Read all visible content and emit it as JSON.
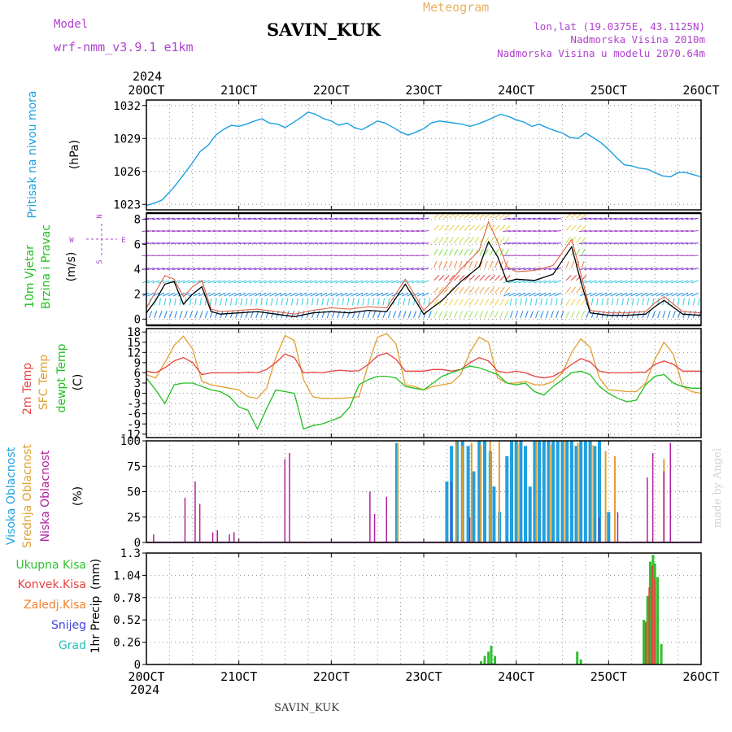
{
  "header": {
    "model_label": "Model",
    "model_name": "wrf-nmm_v3.9.1 e1km",
    "station": "SAVIN_KUK",
    "product": "Meteogram",
    "coords": "lon,lat (19.0375E, 43.1125N)",
    "altitude": "Nadmorska Visina 2010m",
    "model_altitude": "Nadmorska Visina u modelu 2070.64m",
    "footer_station": "SAVIN_KUK",
    "credit": "made by Angel",
    "year": "2024"
  },
  "x_axis": {
    "ticks": [
      "20OCT",
      "21OCT",
      "22OCT",
      "23OCT",
      "24OCT",
      "25OCT",
      "26OCT"
    ]
  },
  "colors": {
    "pressure": "#1aa0e0",
    "temp_2m": "#e84040",
    "temp_sfc": "#e0a030",
    "dewpoint": "#20c020",
    "cloud_high": "#20a0e0",
    "cloud_mid": "#e0a030",
    "cloud_low": "#b020a0",
    "precip_total": "#30c030",
    "precip_conv": "#e84040",
    "precip_frz": "#f08030",
    "snow": "#4040e0",
    "hail": "#20c0c0",
    "label_purple": "#b040d0",
    "title_orange": "#e8b060"
  },
  "chart_data": [
    {
      "type": "line",
      "id": "pressure",
      "ylabel_main": "Pritisak na nivou mora",
      "ylabel_unit": "(hPa)",
      "ylim": [
        1022.5,
        1032.5
      ],
      "yticks": [
        1023,
        1026,
        1029,
        1032
      ],
      "x": [
        20.0,
        20.08,
        20.17,
        20.25,
        20.33,
        20.42,
        20.5,
        20.58,
        20.67,
        20.75,
        20.83,
        20.92,
        21.0,
        21.08,
        21.17,
        21.25,
        21.33,
        21.42,
        21.5,
        21.58,
        21.67,
        21.75,
        21.83,
        21.92,
        22.0,
        22.08,
        22.17,
        22.25,
        22.33,
        22.42,
        22.5,
        22.58,
        22.67,
        22.75,
        22.83,
        22.92,
        23.0,
        23.08,
        23.17,
        23.25,
        23.33,
        23.42,
        23.5,
        23.58,
        23.67,
        23.75,
        23.83,
        23.92,
        24.0,
        24.08,
        24.17,
        24.25,
        24.33,
        24.42,
        24.5,
        24.58,
        24.67,
        24.75,
        24.83,
        24.92,
        25.0,
        25.08,
        25.17,
        25.25,
        25.33,
        25.42,
        25.5,
        25.58,
        25.67,
        25.75,
        25.83,
        25.92,
        26.0
      ],
      "series": [
        {
          "values": [
            1022.9,
            1023.1,
            1023.4,
            1024.1,
            1024.9,
            1025.9,
            1026.8,
            1027.8,
            1028.4,
            1029.3,
            1029.8,
            1030.2,
            1030.1,
            1030.3,
            1030.6,
            1030.8,
            1030.4,
            1030.3,
            1030.0,
            1030.4,
            1030.9,
            1031.4,
            1031.2,
            1030.8,
            1030.6,
            1030.2,
            1030.4,
            1030.0,
            1029.8,
            1030.2,
            1030.6,
            1030.4,
            1030.0,
            1029.6,
            1029.3,
            1029.6,
            1029.9,
            1030.4,
            1030.6,
            1030.5,
            1030.4,
            1030.3,
            1030.1,
            1030.3,
            1030.6,
            1030.9,
            1031.2,
            1031.0,
            1030.7,
            1030.5,
            1030.1,
            1030.3,
            1030.0,
            1029.7,
            1029.5,
            1029.1,
            1029.0,
            1029.5,
            1029.1,
            1028.6,
            1028.0,
            1027.3,
            1026.6,
            1026.5,
            1026.3,
            1026.2,
            1025.9,
            1025.6,
            1025.5,
            1025.9,
            1025.9,
            1025.7,
            1025.5
          ]
        }
      ]
    },
    {
      "type": "line",
      "id": "wind",
      "ylabel_main": "10m Vjetar",
      "ylabel_sub": "Brzina i Pravac",
      "ylabel_unit": "(m/s)",
      "compass": [
        "N",
        "E",
        "S",
        "W"
      ],
      "ylim": [
        -0.5,
        8.5
      ],
      "yticks": [
        0,
        2,
        4,
        6,
        8
      ],
      "x": [
        20.0,
        20.1,
        20.2,
        20.3,
        20.4,
        20.5,
        20.6,
        20.7,
        20.8,
        21.0,
        21.2,
        21.4,
        21.6,
        21.8,
        22.0,
        22.2,
        22.4,
        22.6,
        22.8,
        23.0,
        23.2,
        23.4,
        23.6,
        23.7,
        23.8,
        23.9,
        24.0,
        24.2,
        24.4,
        24.6,
        24.7,
        24.8,
        24.9,
        25.0,
        25.2,
        25.4,
        25.5,
        25.6,
        25.8,
        26.0
      ],
      "series": [
        {
          "name": "speed",
          "values": [
            0.5,
            1.5,
            2.8,
            3.0,
            1.2,
            2.0,
            2.6,
            0.6,
            0.4,
            0.5,
            0.6,
            0.4,
            0.2,
            0.5,
            0.6,
            0.5,
            0.7,
            0.6,
            2.8,
            0.4,
            1.5,
            3.0,
            4.2,
            6.2,
            5.0,
            3.0,
            3.2,
            3.1,
            3.6,
            5.8,
            3.0,
            0.5,
            0.4,
            0.3,
            0.3,
            0.4,
            1.0,
            1.5,
            0.4,
            0.3
          ]
        },
        {
          "name": "gust",
          "values": [
            0.9,
            2.2,
            3.5,
            3.2,
            1.8,
            2.6,
            3.1,
            0.8,
            0.6,
            0.7,
            0.8,
            0.6,
            0.4,
            0.7,
            0.9,
            0.8,
            1.0,
            0.9,
            3.2,
            0.7,
            2.2,
            4.0,
            5.5,
            7.8,
            6.2,
            4.2,
            3.8,
            3.9,
            4.3,
            6.4,
            3.6,
            0.7,
            0.6,
            0.5,
            0.5,
            0.6,
            1.3,
            1.8,
            0.6,
            0.5
          ]
        }
      ]
    },
    {
      "type": "line",
      "id": "temperature",
      "ylabel_1": "2m Temp",
      "ylabel_2": "SFC Temp",
      "ylabel_3": "dewpt Temp",
      "ylabel_unit": "(C)",
      "ylim": [
        -13,
        19
      ],
      "yticks": [
        -12,
        -9,
        -6,
        -3,
        0,
        3,
        6,
        9,
        12,
        15,
        18
      ],
      "x": [
        20.0,
        20.1,
        20.2,
        20.3,
        20.4,
        20.5,
        20.6,
        20.7,
        20.8,
        20.9,
        21.0,
        21.1,
        21.2,
        21.3,
        21.4,
        21.5,
        21.6,
        21.7,
        21.8,
        21.9,
        22.0,
        22.1,
        22.2,
        22.3,
        22.4,
        22.5,
        22.6,
        22.7,
        22.8,
        22.9,
        23.0,
        23.1,
        23.2,
        23.3,
        23.4,
        23.5,
        23.6,
        23.7,
        23.8,
        23.9,
        24.0,
        24.1,
        24.2,
        24.3,
        24.4,
        24.5,
        24.6,
        24.7,
        24.8,
        24.9,
        25.0,
        25.1,
        25.2,
        25.3,
        25.4,
        25.5,
        25.6,
        25.7,
        25.8,
        25.9,
        26.0
      ],
      "series": [
        {
          "name": "2m Temp",
          "values": [
            6.5,
            6.0,
            7.5,
            9.5,
            10.5,
            9.0,
            5.5,
            6.0,
            6.0,
            6.0,
            6.0,
            6.2,
            6.0,
            7.0,
            9.0,
            11.5,
            10.5,
            6.0,
            6.2,
            6.0,
            6.5,
            6.8,
            6.5,
            6.6,
            8.5,
            11.0,
            11.8,
            10.0,
            6.5,
            6.5,
            6.5,
            7.0,
            7.0,
            6.5,
            7.0,
            9.0,
            10.5,
            9.5,
            6.5,
            6.0,
            6.5,
            6.0,
            5.0,
            4.5,
            5.0,
            6.5,
            8.5,
            10.2,
            9.2,
            6.5,
            6.0,
            6.0,
            6.0,
            6.2,
            6.2,
            8.5,
            9.5,
            8.5,
            6.5,
            6.5,
            6.5
          ]
        },
        {
          "name": "SFC Temp",
          "values": [
            5.5,
            4.5,
            9.0,
            14.0,
            16.8,
            13.0,
            3.5,
            2.5,
            2.0,
            1.5,
            1.0,
            -1.0,
            -1.5,
            1.5,
            10.5,
            17.0,
            15.5,
            4.0,
            -1.0,
            -1.5,
            -1.5,
            -1.5,
            -1.3,
            -1.0,
            8.5,
            16.5,
            17.5,
            14.5,
            2.5,
            2.0,
            1.0,
            2.0,
            2.5,
            3.0,
            5.5,
            12.0,
            16.5,
            15.0,
            4.5,
            3.0,
            3.0,
            3.5,
            2.5,
            2.5,
            3.5,
            6.0,
            12.0,
            16.0,
            13.5,
            4.5,
            1.0,
            0.8,
            0.5,
            0.5,
            3.0,
            10.0,
            15.0,
            11.5,
            2.0,
            0.5,
            0.0
          ]
        },
        {
          "name": "dewpt Temp",
          "values": [
            4.5,
            1.0,
            -3.0,
            2.5,
            3.0,
            3.0,
            2.0,
            1.0,
            0.5,
            -1.0,
            -4.0,
            -5.0,
            -10.5,
            -4.5,
            1.0,
            0.5,
            0.0,
            -10.5,
            -9.5,
            -9.0,
            -8.0,
            -7.0,
            -4.0,
            2.5,
            4.0,
            5.0,
            5.0,
            4.5,
            2.0,
            1.5,
            1.0,
            3.0,
            5.0,
            6.0,
            7.0,
            8.0,
            7.5,
            6.5,
            5.5,
            3.0,
            2.5,
            3.0,
            0.5,
            -0.5,
            2.0,
            4.0,
            6.0,
            6.5,
            5.5,
            2.0,
            0.0,
            -1.5,
            -2.5,
            -2.0,
            2.5,
            5.0,
            5.5,
            3.0,
            2.0,
            1.5,
            1.5
          ]
        }
      ]
    },
    {
      "type": "bar",
      "id": "clouds",
      "ylabel_1": "Visoka Oblacnost",
      "ylabel_2": "Srednja Oblacnost",
      "ylabel_3": "Niska Oblacnost",
      "ylabel_unit": "(%)",
      "ylim": [
        0,
        100
      ],
      "yticks": [
        0,
        25,
        50,
        75,
        100
      ],
      "low": [
        [
          20.08,
          8
        ],
        [
          20.42,
          44
        ],
        [
          20.53,
          60
        ],
        [
          20.58,
          38
        ],
        [
          20.72,
          10
        ],
        [
          20.77,
          12
        ],
        [
          20.9,
          8
        ],
        [
          20.95,
          10
        ],
        [
          21.5,
          82
        ],
        [
          21.55,
          88
        ],
        [
          22.42,
          50
        ],
        [
          22.47,
          28
        ],
        [
          22.6,
          45
        ],
        [
          23.3,
          60
        ],
        [
          23.5,
          25
        ],
        [
          24.9,
          25
        ],
        [
          25.1,
          30
        ],
        [
          25.42,
          64
        ],
        [
          25.48,
          88
        ],
        [
          25.6,
          70
        ],
        [
          25.67,
          98
        ]
      ],
      "mid": [
        [
          22.7,
          98
        ],
        [
          23.33,
          100
        ],
        [
          23.4,
          95
        ],
        [
          23.5,
          98
        ],
        [
          23.6,
          96
        ],
        [
          23.7,
          100
        ],
        [
          23.8,
          100
        ],
        [
          24.0,
          98
        ],
        [
          24.2,
          100
        ],
        [
          24.35,
          96
        ],
        [
          24.5,
          100
        ],
        [
          24.65,
          98
        ],
        [
          24.8,
          96
        ],
        [
          24.95,
          90
        ],
        [
          25.05,
          85
        ],
        [
          25.58,
          82
        ]
      ],
      "high": [
        [
          22.71,
          98
        ],
        [
          23.25,
          60
        ],
        [
          23.3,
          95
        ],
        [
          23.36,
          100
        ],
        [
          23.42,
          100
        ],
        [
          23.48,
          95
        ],
        [
          23.54,
          70
        ],
        [
          23.6,
          100
        ],
        [
          23.66,
          100
        ],
        [
          23.72,
          90
        ],
        [
          23.76,
          55
        ],
        [
          23.82,
          30
        ],
        [
          23.9,
          85
        ],
        [
          23.95,
          100
        ],
        [
          24.0,
          100
        ],
        [
          24.05,
          100
        ],
        [
          24.1,
          95
        ],
        [
          24.15,
          55
        ],
        [
          24.2,
          100
        ],
        [
          24.25,
          100
        ],
        [
          24.3,
          100
        ],
        [
          24.35,
          100
        ],
        [
          24.4,
          100
        ],
        [
          24.45,
          100
        ],
        [
          24.5,
          100
        ],
        [
          24.55,
          100
        ],
        [
          24.6,
          100
        ],
        [
          24.65,
          95
        ],
        [
          24.7,
          100
        ],
        [
          24.75,
          100
        ],
        [
          24.8,
          100
        ],
        [
          24.85,
          95
        ],
        [
          24.9,
          100
        ],
        [
          25.0,
          30
        ]
      ]
    },
    {
      "type": "bar",
      "id": "precip",
      "legend": [
        "Ukupna Kisa",
        "Konvek.Kisa",
        "Zaledj.Kisa",
        "Snijeg",
        "Grad"
      ],
      "ylabel_main": "1hr Precip",
      "ylabel_unit": "(mm)",
      "ylim": [
        0,
        1.3
      ],
      "yticks": [
        "0",
        "0.26",
        "0.52",
        "0.78",
        "1.04",
        "1.3"
      ],
      "total": [
        [
          20.5,
          0.01
        ],
        [
          23.62,
          0.04
        ],
        [
          23.66,
          0.1
        ],
        [
          23.7,
          0.15
        ],
        [
          23.73,
          0.22
        ],
        [
          23.77,
          0.1
        ],
        [
          24.66,
          0.15
        ],
        [
          24.7,
          0.06
        ],
        [
          25.38,
          0.52
        ],
        [
          25.42,
          0.8
        ],
        [
          25.45,
          1.2
        ],
        [
          25.48,
          1.28
        ],
        [
          25.5,
          1.18
        ],
        [
          25.53,
          1.02
        ],
        [
          25.57,
          0.24
        ]
      ],
      "convective": [
        [
          25.4,
          0.5
        ],
        [
          25.44,
          0.9
        ],
        [
          25.47,
          1.15
        ],
        [
          25.5,
          1.0
        ]
      ]
    }
  ]
}
